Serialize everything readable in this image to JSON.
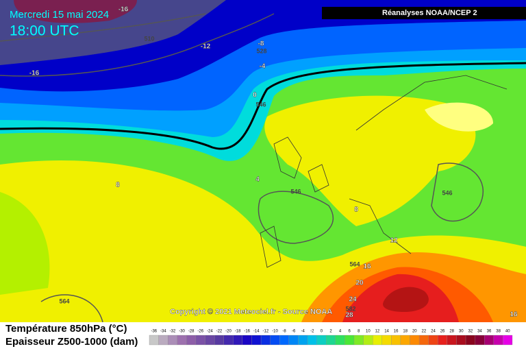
{
  "header": {
    "date": "Mercredi 15 mai 2024",
    "time": "18:00 UTC",
    "source": "Réanalyses NOAA/NCEP 2"
  },
  "copyright": "Copyright © 2021 Meteociel.fr - Source NOAA",
  "legend": {
    "temperature": "Température 850hPa (°C)",
    "thickness": "Epaisseur Z500-1000 (dam)",
    "scale_ticks": [
      -36,
      -34,
      -32,
      -30,
      -28,
      -26,
      -24,
      -22,
      -20,
      -18,
      -16,
      -14,
      -12,
      -10,
      -8,
      -6,
      -4,
      -2,
      0,
      2,
      4,
      6,
      8,
      10,
      12,
      14,
      16,
      18,
      20,
      22,
      24,
      26,
      28,
      30,
      32,
      34,
      36,
      38,
      40
    ]
  },
  "map": {
    "isotherm_labels": [
      -16,
      -16,
      -12,
      -8,
      -4,
      0,
      4,
      8,
      8,
      12,
      16,
      20,
      24,
      28,
      16
    ],
    "thickness_labels": [
      510,
      528,
      546,
      546,
      546,
      564,
      564,
      582
    ]
  }
}
